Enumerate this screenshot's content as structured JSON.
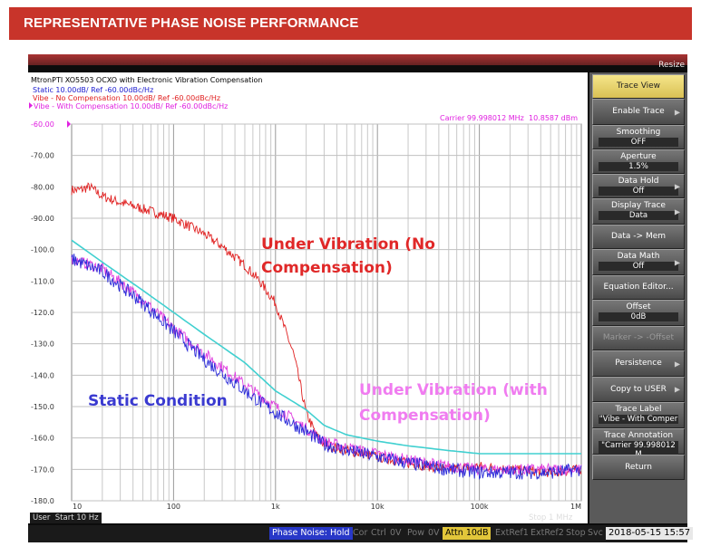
{
  "banner": {
    "title": "REPRESENTATIVE PHASE NOISE PERFORMANCE"
  },
  "window": {
    "resize_label": "Resize"
  },
  "header": {
    "title": "MtronPTI XO5503 OCXO with Electronic Vibration Compensation",
    "traces": [
      {
        "text": "Static 10.00dB/ Ref -60.00dBc/Hz",
        "color": "#2020d0"
      },
      {
        "text": "Vibe - No Compensation 10.00dB/ Ref -60.00dBc/Hz",
        "color": "#e02020"
      },
      {
        "text": "Vibe - With Compensation 10.00dB/ Ref -60.00dBc/Hz",
        "color": "#e020e0"
      }
    ],
    "carrier": "Carrier 99.998012 MHz",
    "carrier_power": "10.8587 dBm",
    "start": "Start 10 Hz",
    "stop": "Stop 1 MHz",
    "user": "User"
  },
  "annotations": {
    "no_comp": [
      "Under Vibration (No",
      "Compensation)"
    ],
    "with_comp": [
      "Under Vibration (with",
      "Compensation)"
    ],
    "static": "Static Condition"
  },
  "softkeys": [
    {
      "label": "Trace View",
      "value": "",
      "highlight": true,
      "arrow": false
    },
    {
      "label": "Enable Trace",
      "value": "",
      "arrow": true
    },
    {
      "label": "Smoothing",
      "value": "OFF"
    },
    {
      "label": "Aperture",
      "value": "1.5%"
    },
    {
      "label": "Data Hold",
      "value": "Off",
      "arrow": true
    },
    {
      "label": "Display Trace",
      "value": "Data",
      "arrow": true
    },
    {
      "label": "Data -> Mem",
      "value": ""
    },
    {
      "label": "Data Math",
      "value": "Off",
      "arrow": true
    },
    {
      "label": "Equation Editor...",
      "value": ""
    },
    {
      "label": "Offset",
      "value": "0dB"
    },
    {
      "label": "Marker -> -Offset",
      "value": "",
      "disabled": true
    },
    {
      "label": "Persistence",
      "value": "",
      "arrow": true
    },
    {
      "label": "Copy to USER",
      "value": "",
      "arrow": true
    },
    {
      "label": "Trace Label",
      "value": "\"Vibe - With Comper"
    },
    {
      "label": "Trace Annotation",
      "value": "\"Carrier 99.998012 M"
    },
    {
      "label": "Return",
      "value": ""
    }
  ],
  "status": {
    "mode": "Phase Noise: Hold",
    "items": [
      "Cor",
      "Ctrl",
      "0V",
      "Pow",
      "0V"
    ],
    "attn": "Attn 10dB",
    "items2": [
      "ExtRef1",
      "ExtRef2",
      "Stop",
      "Svc"
    ],
    "datetime": "2018-05-15 15:57"
  },
  "chart_data": {
    "type": "line",
    "xscale": "log",
    "xlim": [
      10,
      1000000
    ],
    "ylim": [
      -180,
      -60
    ],
    "xticks": [
      {
        "v": 100,
        "label": "100"
      },
      {
        "v": 1000,
        "label": "1k"
      },
      {
        "v": 10000,
        "label": "10k"
      },
      {
        "v": 100000,
        "label": "100k"
      },
      {
        "v": 1000000,
        "label": "1M"
      }
    ],
    "xtick_first": "10",
    "yticks": [
      -60,
      -70,
      -80,
      -90,
      -100,
      -110,
      -120,
      -130,
      -140,
      -150,
      -160,
      -170,
      -180
    ],
    "ytick_labels": [
      "-60.00",
      "-70.00",
      "-80.00",
      "-90.00",
      "-100.0",
      "-110.0",
      "-120.0",
      "-130.0",
      "-140.0",
      "-150.0",
      "-160.0",
      "-170.0",
      "-180.0"
    ],
    "grid": true,
    "series": [
      {
        "color": "#e02020",
        "noise": 1.6,
        "x": [
          10,
          12,
          15,
          20,
          30,
          50,
          100,
          200,
          300,
          500,
          700,
          1000,
          1500,
          2000,
          2500,
          3000,
          5000,
          10000,
          20000,
          50000,
          100000,
          200000,
          500000,
          1000000
        ],
        "y": [
          -81,
          -81,
          -80,
          -83,
          -85,
          -87,
          -90,
          -95,
          -99,
          -105,
          -110,
          -117,
          -133,
          -152,
          -159,
          -162,
          -164,
          -166,
          -168,
          -170,
          -169,
          -170,
          -171,
          -170
        ]
      },
      {
        "color": "#e040e0",
        "noise": 1.8,
        "x": [
          10,
          20,
          50,
          100,
          200,
          500,
          1000,
          2000,
          3000,
          5000,
          10000,
          20000,
          50000,
          100000,
          200000,
          500000,
          1000000
        ],
        "y": [
          -103,
          -106,
          -116,
          -125,
          -133,
          -143,
          -150,
          -157,
          -161,
          -163,
          -165,
          -167,
          -169,
          -170,
          -170,
          -170,
          -170
        ]
      },
      {
        "color": "#2a2ad8",
        "noise": 2.2,
        "x": [
          10,
          20,
          50,
          100,
          200,
          500,
          1000,
          2000,
          3000,
          5000,
          10000,
          20000,
          50000,
          100000,
          200000,
          500000,
          1000000
        ],
        "y": [
          -103,
          -107,
          -117,
          -126,
          -135,
          -145,
          -152,
          -158,
          -162,
          -164,
          -166,
          -168,
          -170,
          -171,
          -171,
          -171,
          -170
        ]
      },
      {
        "color": "#40d0d0",
        "noise": 0,
        "x": [
          10,
          20,
          50,
          100,
          200,
          500,
          1000,
          2000,
          3000,
          5000,
          10000,
          20000,
          50000,
          100000,
          200000,
          500000,
          1000000
        ],
        "y": [
          -97,
          -104,
          -113,
          -120,
          -127,
          -136,
          -145,
          -151,
          -156,
          -159,
          -161,
          -162.5,
          -164,
          -165,
          -165,
          -165,
          -165
        ]
      }
    ]
  }
}
